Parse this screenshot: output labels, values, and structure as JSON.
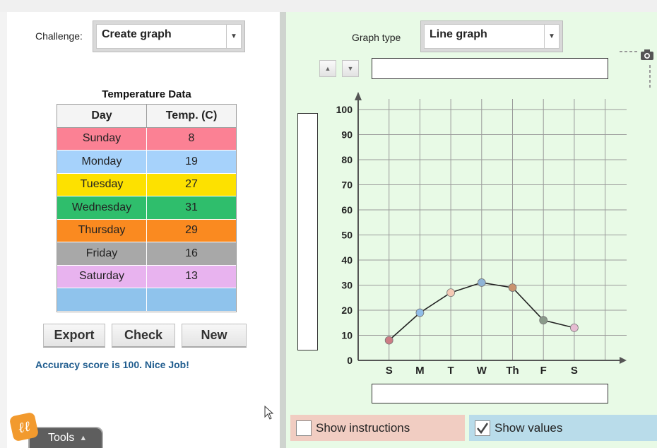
{
  "challenge": {
    "label": "Challenge:",
    "value": "Create graph"
  },
  "graph_type": {
    "label": "Graph type",
    "value": "Line graph"
  },
  "table": {
    "title": "Temperature Data",
    "headers": [
      "Day",
      "Temp. (C)"
    ],
    "rows": [
      {
        "day": "Sunday",
        "temp": "8",
        "color": "#fb8194"
      },
      {
        "day": "Monday",
        "temp": "19",
        "color": "#a6d2fb"
      },
      {
        "day": "Tuesday",
        "temp": "27",
        "color": "#fde100"
      },
      {
        "day": "Wednesday",
        "temp": "31",
        "color": "#2fbe6c"
      },
      {
        "day": "Thursday",
        "temp": "29",
        "color": "#fa8a20"
      },
      {
        "day": "Friday",
        "temp": "16",
        "color": "#a8a8a8"
      },
      {
        "day": "Saturday",
        "temp": "13",
        "color": "#e8b3ef"
      },
      {
        "day": "",
        "temp": "",
        "color": "#8fc3ec"
      }
    ]
  },
  "buttons": {
    "export": "Export",
    "check": "Check",
    "new": "New"
  },
  "score_message": "Accuracy score is 100. Nice Job!",
  "tools_label": "Tools",
  "logo_text": "ℓℓ",
  "checkboxes": {
    "show_instructions": {
      "label": "Show instructions",
      "checked": false,
      "bg": "#f1cdc2"
    },
    "show_values": {
      "label": "Show values",
      "checked": true,
      "bg": "#b9dcea"
    }
  },
  "chart_data": {
    "type": "line",
    "title": "",
    "xlabel": "",
    "ylabel": "",
    "categories": [
      "S",
      "M",
      "T",
      "W",
      "Th",
      "F",
      "S"
    ],
    "values": [
      8,
      19,
      27,
      31,
      29,
      16,
      13
    ],
    "point_colors": [
      "#cc7c84",
      "#90bde8",
      "#f4c9b4",
      "#8fb4d6",
      "#c9936e",
      "#8a9a8a",
      "#e6bcd2"
    ],
    "ylim": [
      0,
      100
    ],
    "yticks": [
      0,
      10,
      20,
      30,
      40,
      50,
      60,
      70,
      80,
      90,
      100
    ],
    "grid": true
  }
}
